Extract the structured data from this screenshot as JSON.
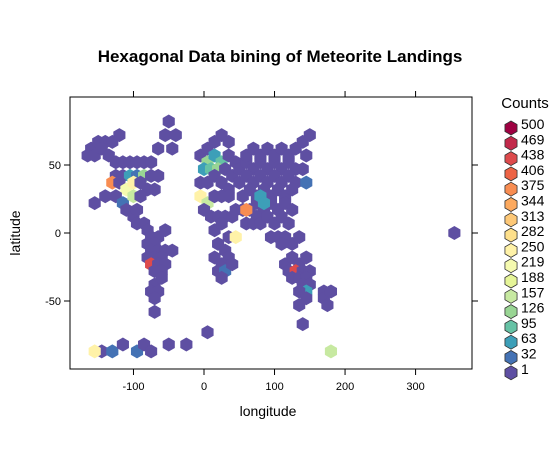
{
  "chart_data": {
    "type": "hexbin",
    "title": "Hexagonal Data bining of Meteorite Landings",
    "xlabel": "longitude",
    "ylabel": "latitude",
    "xlim": [
      -190,
      380
    ],
    "ylim": [
      -100,
      100
    ],
    "xticks": [
      -100,
      0,
      100,
      200,
      300
    ],
    "yticks": [
      -50,
      0,
      50
    ],
    "legend": {
      "title": "Counts",
      "placement": "right",
      "levels": [
        {
          "label": "500",
          "color": "#9E0142"
        },
        {
          "label": "469",
          "color": "#C2294A"
        },
        {
          "label": "438",
          "color": "#DD4A4C"
        },
        {
          "label": "406",
          "color": "#ED6345"
        },
        {
          "label": "375",
          "color": "#F88D52"
        },
        {
          "label": "344",
          "color": "#FCA95E"
        },
        {
          "label": "313",
          "color": "#FDC877"
        },
        {
          "label": "282",
          "color": "#FEE08B"
        },
        {
          "label": "250",
          "color": "#FFF2A8"
        },
        {
          "label": "219",
          "color": "#F5FAAF"
        },
        {
          "label": "188",
          "color": "#E6F598"
        },
        {
          "label": "157",
          "color": "#C7E9A1"
        },
        {
          "label": "126",
          "color": "#99D594"
        },
        {
          "label": "95",
          "color": "#66C2A5"
        },
        {
          "label": "63",
          "color": "#3D9FB8"
        },
        {
          "label": "32",
          "color": "#4472B4"
        },
        {
          "label": "1",
          "color": "#5E4FA2"
        }
      ]
    },
    "hexbins": [
      {
        "x": -160,
        "y": 62,
        "c": 1
      },
      {
        "x": -150,
        "y": 67,
        "c": 1
      },
      {
        "x": -140,
        "y": 67,
        "c": 1
      },
      {
        "x": -130,
        "y": 67,
        "c": 1
      },
      {
        "x": -120,
        "y": 72,
        "c": 1
      },
      {
        "x": -165,
        "y": 57,
        "c": 1
      },
      {
        "x": -155,
        "y": 57,
        "c": 1
      },
      {
        "x": -145,
        "y": 62,
        "c": 1
      },
      {
        "x": -135,
        "y": 57,
        "c": 1
      },
      {
        "x": -125,
        "y": 52,
        "c": 1
      },
      {
        "x": -115,
        "y": 52,
        "c": 1
      },
      {
        "x": -105,
        "y": 52,
        "c": 1
      },
      {
        "x": -95,
        "y": 52,
        "c": 1
      },
      {
        "x": -85,
        "y": 52,
        "c": 1
      },
      {
        "x": -75,
        "y": 52,
        "c": 1
      },
      {
        "x": -125,
        "y": 42,
        "c": 1
      },
      {
        "x": -115,
        "y": 42,
        "c": 1
      },
      {
        "x": -105,
        "y": 42,
        "c": 63
      },
      {
        "x": -95,
        "y": 42,
        "c": 32
      },
      {
        "x": -85,
        "y": 42,
        "c": 126
      },
      {
        "x": -75,
        "y": 42,
        "c": 1
      },
      {
        "x": -65,
        "y": 42,
        "c": 1
      },
      {
        "x": -130,
        "y": 37,
        "c": 375
      },
      {
        "x": -120,
        "y": 37,
        "c": 1
      },
      {
        "x": -110,
        "y": 32,
        "c": 219
      },
      {
        "x": -100,
        "y": 37,
        "c": 250
      },
      {
        "x": -90,
        "y": 37,
        "c": 1
      },
      {
        "x": -80,
        "y": 32,
        "c": 1
      },
      {
        "x": -70,
        "y": 32,
        "c": 1
      },
      {
        "x": -140,
        "y": 27,
        "c": 1
      },
      {
        "x": -125,
        "y": 27,
        "c": 1
      },
      {
        "x": -115,
        "y": 22,
        "c": 32
      },
      {
        "x": -100,
        "y": 27,
        "c": 157
      },
      {
        "x": -90,
        "y": 27,
        "c": 1
      },
      {
        "x": -155,
        "y": 22,
        "c": 1
      },
      {
        "x": -110,
        "y": 17,
        "c": 1
      },
      {
        "x": -100,
        "y": 12,
        "c": 1
      },
      {
        "x": -95,
        "y": 17,
        "c": 1
      },
      {
        "x": -95,
        "y": 7,
        "c": 1
      },
      {
        "x": -85,
        "y": 7,
        "c": 1
      },
      {
        "x": -80,
        "y": 2,
        "c": 1
      },
      {
        "x": -75,
        "y": -3,
        "c": 1
      },
      {
        "x": -65,
        "y": -3,
        "c": 1
      },
      {
        "x": -55,
        "y": 2,
        "c": 1
      },
      {
        "x": -80,
        "y": -8,
        "c": 1
      },
      {
        "x": -70,
        "y": -8,
        "c": 1
      },
      {
        "x": -75,
        "y": -13,
        "c": 1
      },
      {
        "x": -65,
        "y": -13,
        "c": 1
      },
      {
        "x": -55,
        "y": -13,
        "c": 1
      },
      {
        "x": -45,
        "y": -13,
        "c": 1
      },
      {
        "x": -80,
        "y": -18,
        "c": 1
      },
      {
        "x": -70,
        "y": -18,
        "c": 1
      },
      {
        "x": -60,
        "y": -18,
        "c": 1
      },
      {
        "x": -75,
        "y": -23,
        "c": 438
      },
      {
        "x": -65,
        "y": -23,
        "c": 1
      },
      {
        "x": -55,
        "y": -23,
        "c": 1
      },
      {
        "x": -70,
        "y": -28,
        "c": 1
      },
      {
        "x": -60,
        "y": -28,
        "c": 1
      },
      {
        "x": -70,
        "y": -38,
        "c": 1
      },
      {
        "x": -60,
        "y": -33,
        "c": 1
      },
      {
        "x": -75,
        "y": -43,
        "c": 1
      },
      {
        "x": -65,
        "y": -43,
        "c": 1
      },
      {
        "x": -70,
        "y": -48,
        "c": 1
      },
      {
        "x": -70,
        "y": -58,
        "c": 1
      },
      {
        "x": -65,
        "y": 62,
        "c": 1
      },
      {
        "x": -55,
        "y": 72,
        "c": 1
      },
      {
        "x": -50,
        "y": 82,
        "c": 1
      },
      {
        "x": -40,
        "y": 72,
        "c": 1
      },
      {
        "x": -45,
        "y": 62,
        "c": 1
      },
      {
        "x": -145,
        "y": -87,
        "c": 1
      },
      {
        "x": -130,
        "y": -87,
        "c": 32
      },
      {
        "x": -115,
        "y": -82,
        "c": 1
      },
      {
        "x": -95,
        "y": -87,
        "c": 32
      },
      {
        "x": -85,
        "y": -82,
        "c": 1
      },
      {
        "x": -75,
        "y": -87,
        "c": 1
      },
      {
        "x": -50,
        "y": -82,
        "c": 1
      },
      {
        "x": -25,
        "y": -82,
        "c": 1
      },
      {
        "x": 5,
        "y": -73,
        "c": 1
      },
      {
        "x": -155,
        "y": -87,
        "c": 250
      },
      {
        "x": 180,
        "y": -87,
        "c": 157
      },
      {
        "x": -5,
        "y": 57,
        "c": 1
      },
      {
        "x": 5,
        "y": 62,
        "c": 1
      },
      {
        "x": 15,
        "y": 67,
        "c": 1
      },
      {
        "x": 25,
        "y": 72,
        "c": 1
      },
      {
        "x": 35,
        "y": 67,
        "c": 1
      },
      {
        "x": 5,
        "y": 52,
        "c": 126
      },
      {
        "x": 15,
        "y": 57,
        "c": 63
      },
      {
        "x": 25,
        "y": 52,
        "c": 95
      },
      {
        "x": 35,
        "y": 57,
        "c": 1
      },
      {
        "x": 45,
        "y": 52,
        "c": 1
      },
      {
        "x": 0,
        "y": 47,
        "c": 63
      },
      {
        "x": 10,
        "y": 47,
        "c": 95
      },
      {
        "x": 20,
        "y": 47,
        "c": 126
      },
      {
        "x": 30,
        "y": 47,
        "c": 1
      },
      {
        "x": 40,
        "y": 42,
        "c": 1
      },
      {
        "x": -5,
        "y": 37,
        "c": 1
      },
      {
        "x": 5,
        "y": 37,
        "c": 1
      },
      {
        "x": 15,
        "y": 42,
        "c": 1
      },
      {
        "x": 25,
        "y": 37,
        "c": 1
      },
      {
        "x": 35,
        "y": 32,
        "c": 1
      },
      {
        "x": -5,
        "y": 27,
        "c": 250
      },
      {
        "x": 5,
        "y": 22,
        "c": 157
      },
      {
        "x": 15,
        "y": 27,
        "c": 1
      },
      {
        "x": 25,
        "y": 27,
        "c": 1
      },
      {
        "x": 35,
        "y": 27,
        "c": 1
      },
      {
        "x": 0,
        "y": 17,
        "c": 1
      },
      {
        "x": 10,
        "y": 12,
        "c": 1
      },
      {
        "x": 20,
        "y": 12,
        "c": 1
      },
      {
        "x": 30,
        "y": 12,
        "c": 1
      },
      {
        "x": 40,
        "y": 12,
        "c": 1
      },
      {
        "x": 15,
        "y": 2,
        "c": 1
      },
      {
        "x": 25,
        "y": 7,
        "c": 1
      },
      {
        "x": 35,
        "y": -3,
        "c": 1
      },
      {
        "x": 45,
        "y": -3,
        "c": 250
      },
      {
        "x": 20,
        "y": -8,
        "c": 1
      },
      {
        "x": 30,
        "y": -13,
        "c": 1
      },
      {
        "x": 15,
        "y": -18,
        "c": 1
      },
      {
        "x": 25,
        "y": -23,
        "c": 1
      },
      {
        "x": 35,
        "y": -18,
        "c": 1
      },
      {
        "x": 20,
        "y": -28,
        "c": 1
      },
      {
        "x": 30,
        "y": -28,
        "c": 32
      },
      {
        "x": 40,
        "y": -23,
        "c": 1
      },
      {
        "x": 25,
        "y": -33,
        "c": 1
      },
      {
        "x": 50,
        "y": 47,
        "c": 1
      },
      {
        "x": 60,
        "y": 52,
        "c": 1
      },
      {
        "x": 70,
        "y": 47,
        "c": 1
      },
      {
        "x": 80,
        "y": 52,
        "c": 1
      },
      {
        "x": 90,
        "y": 47,
        "c": 1
      },
      {
        "x": 100,
        "y": 52,
        "c": 1
      },
      {
        "x": 110,
        "y": 47,
        "c": 1
      },
      {
        "x": 120,
        "y": 52,
        "c": 1
      },
      {
        "x": 130,
        "y": 47,
        "c": 1
      },
      {
        "x": 50,
        "y": 37,
        "c": 1
      },
      {
        "x": 60,
        "y": 42,
        "c": 1
      },
      {
        "x": 70,
        "y": 37,
        "c": 1
      },
      {
        "x": 80,
        "y": 42,
        "c": 1
      },
      {
        "x": 90,
        "y": 37,
        "c": 1
      },
      {
        "x": 100,
        "y": 42,
        "c": 1
      },
      {
        "x": 110,
        "y": 37,
        "c": 1
      },
      {
        "x": 120,
        "y": 42,
        "c": 1
      },
      {
        "x": 130,
        "y": 37,
        "c": 1
      },
      {
        "x": 55,
        "y": 27,
        "c": 1
      },
      {
        "x": 65,
        "y": 32,
        "c": 1
      },
      {
        "x": 75,
        "y": 27,
        "c": 1
      },
      {
        "x": 85,
        "y": 32,
        "c": 1
      },
      {
        "x": 95,
        "y": 27,
        "c": 1
      },
      {
        "x": 105,
        "y": 32,
        "c": 1
      },
      {
        "x": 115,
        "y": 27,
        "c": 1
      },
      {
        "x": 125,
        "y": 32,
        "c": 1
      },
      {
        "x": 55,
        "y": 17,
        "c": 1
      },
      {
        "x": 65,
        "y": 17,
        "c": 1
      },
      {
        "x": 75,
        "y": 22,
        "c": 1
      },
      {
        "x": 85,
        "y": 17,
        "c": 1
      },
      {
        "x": 95,
        "y": 22,
        "c": 1
      },
      {
        "x": 105,
        "y": 17,
        "c": 1
      },
      {
        "x": 115,
        "y": 22,
        "c": 1
      },
      {
        "x": 125,
        "y": 17,
        "c": 1
      },
      {
        "x": 60,
        "y": 57,
        "c": 1
      },
      {
        "x": 70,
        "y": 62,
        "c": 1
      },
      {
        "x": 80,
        "y": 57,
        "c": 1
      },
      {
        "x": 90,
        "y": 62,
        "c": 1
      },
      {
        "x": 100,
        "y": 57,
        "c": 1
      },
      {
        "x": 110,
        "y": 62,
        "c": 1
      },
      {
        "x": 120,
        "y": 57,
        "c": 1
      },
      {
        "x": 130,
        "y": 62,
        "c": 1
      },
      {
        "x": 140,
        "y": 67,
        "c": 1
      },
      {
        "x": 150,
        "y": 72,
        "c": 1
      },
      {
        "x": 145,
        "y": 57,
        "c": 1
      },
      {
        "x": 140,
        "y": 47,
        "c": 1
      },
      {
        "x": 145,
        "y": 37,
        "c": 32
      },
      {
        "x": 75,
        "y": 12,
        "c": 1
      },
      {
        "x": 80,
        "y": 27,
        "c": 63
      },
      {
        "x": 45,
        "y": 17,
        "c": 1
      },
      {
        "x": 60,
        "y": 7,
        "c": 1
      },
      {
        "x": 70,
        "y": 7,
        "c": 1
      },
      {
        "x": 80,
        "y": 7,
        "c": 1
      },
      {
        "x": 90,
        "y": 12,
        "c": 1
      },
      {
        "x": 100,
        "y": 7,
        "c": 1
      },
      {
        "x": 110,
        "y": 12,
        "c": 1
      },
      {
        "x": 120,
        "y": 7,
        "c": 1
      },
      {
        "x": 55,
        "y": 17,
        "c": 1
      },
      {
        "x": 60,
        "y": 17,
        "c": 375
      },
      {
        "x": 85,
        "y": 22,
        "c": 63
      },
      {
        "x": 95,
        "y": -3,
        "c": 1
      },
      {
        "x": 105,
        "y": -3,
        "c": 1
      },
      {
        "x": 115,
        "y": -3,
        "c": 1
      },
      {
        "x": 125,
        "y": -8,
        "c": 1
      },
      {
        "x": 135,
        "y": -3,
        "c": 1
      },
      {
        "x": 110,
        "y": -8,
        "c": 1
      },
      {
        "x": 115,
        "y": -23,
        "c": 1
      },
      {
        "x": 125,
        "y": -18,
        "c": 1
      },
      {
        "x": 135,
        "y": -23,
        "c": 1
      },
      {
        "x": 145,
        "y": -18,
        "c": 1
      },
      {
        "x": 120,
        "y": -28,
        "c": 1
      },
      {
        "x": 130,
        "y": -28,
        "c": 438
      },
      {
        "x": 140,
        "y": -28,
        "c": 1
      },
      {
        "x": 150,
        "y": -28,
        "c": 1
      },
      {
        "x": 125,
        "y": -33,
        "c": 1
      },
      {
        "x": 135,
        "y": -33,
        "c": 1
      },
      {
        "x": 145,
        "y": -33,
        "c": 1
      },
      {
        "x": 140,
        "y": -38,
        "c": 1
      },
      {
        "x": 150,
        "y": -38,
        "c": 1
      },
      {
        "x": 145,
        "y": -43,
        "c": 63
      },
      {
        "x": 135,
        "y": -43,
        "c": 1
      },
      {
        "x": 145,
        "y": -48,
        "c": 1
      },
      {
        "x": 135,
        "y": -53,
        "c": 1
      },
      {
        "x": 170,
        "y": -43,
        "c": 1
      },
      {
        "x": 170,
        "y": -48,
        "c": 1
      },
      {
        "x": 180,
        "y": -43,
        "c": 1
      },
      {
        "x": 175,
        "y": -53,
        "c": 1
      },
      {
        "x": 140,
        "y": -67,
        "c": 1
      },
      {
        "x": 355,
        "y": 0,
        "c": 1
      }
    ]
  }
}
